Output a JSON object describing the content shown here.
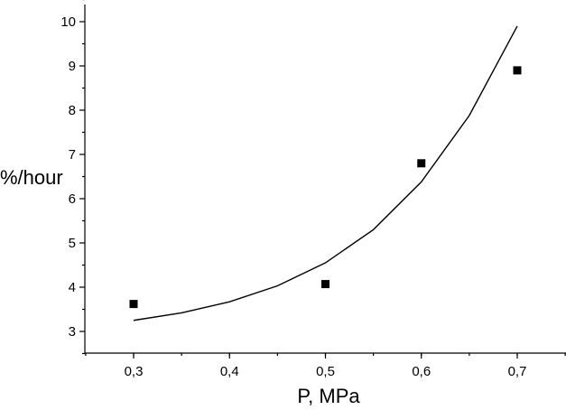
{
  "chart_data": {
    "type": "scatter",
    "title": "",
    "xlabel": "P, MPa",
    "ylabel": "%/hour",
    "xlim": [
      0.25,
      0.75
    ],
    "ylim": [
      2.5,
      10.5
    ],
    "x_ticks": [
      0.3,
      0.4,
      0.5,
      0.6,
      0.7
    ],
    "x_tick_labels": [
      "0,3",
      "0,4",
      "0,5",
      "0,6",
      "0,7"
    ],
    "y_ticks": [
      3,
      4,
      5,
      6,
      7,
      8,
      9,
      10
    ],
    "y_tick_labels": [
      "3",
      "4",
      "5",
      "6",
      "7",
      "8",
      "9",
      "10"
    ],
    "grid": false,
    "series": [
      {
        "kind": "points",
        "marker": "square",
        "x": [
          0.3,
          0.5,
          0.6,
          0.7
        ],
        "y": [
          3.62,
          4.07,
          6.8,
          8.9
        ]
      },
      {
        "kind": "line",
        "x": [
          0.3,
          0.35,
          0.4,
          0.45,
          0.5,
          0.55,
          0.6,
          0.65,
          0.7
        ],
        "y": [
          3.25,
          3.42,
          3.67,
          4.03,
          4.55,
          5.3,
          6.38,
          7.88,
          9.9
        ]
      }
    ]
  }
}
